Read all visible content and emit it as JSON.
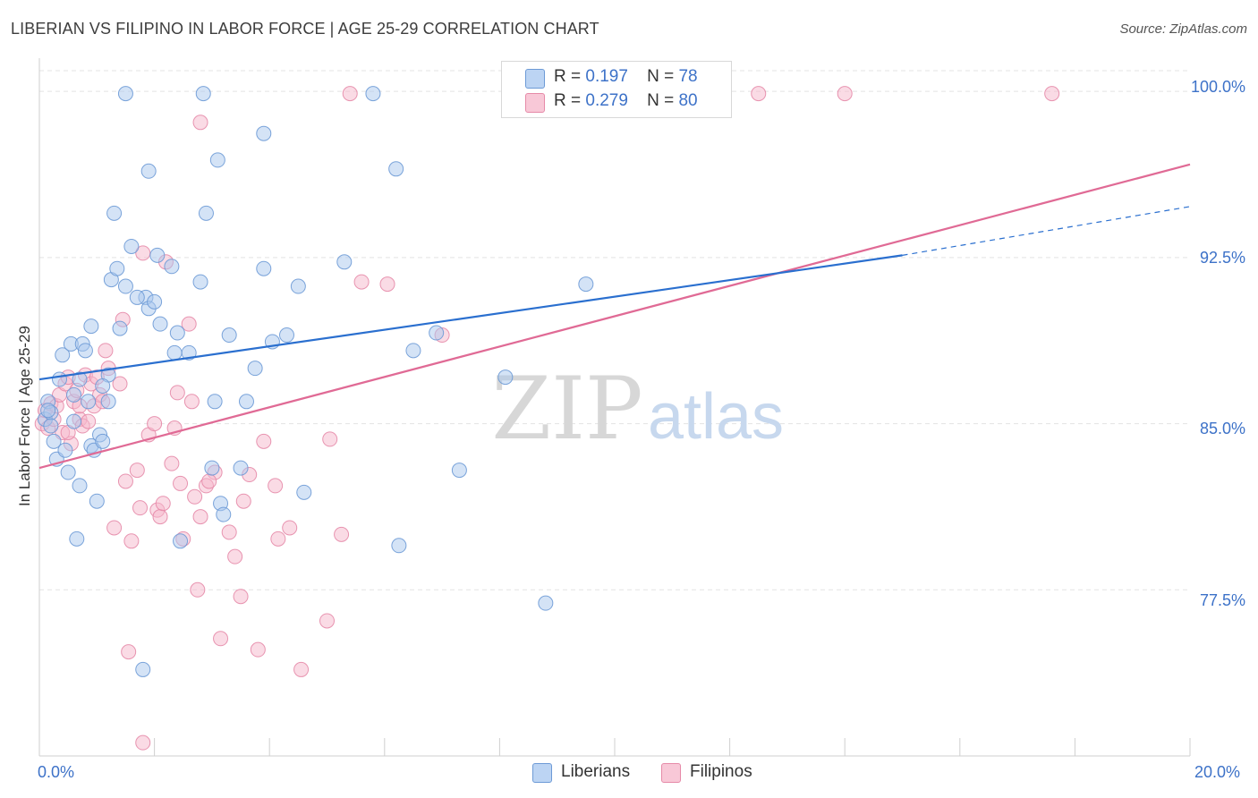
{
  "title": "LIBERIAN VS FILIPINO IN LABOR FORCE | AGE 25-29 CORRELATION CHART",
  "source": "Source: ZipAtlas.com",
  "watermark": {
    "zip": "ZIP",
    "atlas": "atlas"
  },
  "legend": {
    "liberian": {
      "r_label": "R =",
      "r_value": "0.197",
      "n_label": "N =",
      "n_value": "78"
    },
    "filipino": {
      "r_label": "R =",
      "r_value": "0.279",
      "n_label": "N =",
      "n_value": "80"
    }
  },
  "bottom_legend": {
    "liberian": "Liberians",
    "filipino": "Filipinos"
  },
  "colors": {
    "liberian_fill": "#a9c8ee",
    "liberian_stroke": "#6d9ad6",
    "liberian_line": "#2a6fcf",
    "filipino_fill": "#f5b8cb",
    "filipino_stroke": "#e68aa8",
    "filipino_line": "#e06a95",
    "tick_text": "#3d72c8",
    "grid": "#e3e3e3"
  },
  "chart_data": {
    "type": "scatter",
    "title": "LIBERIAN VS FILIPINO IN LABOR FORCE | AGE 25-29 CORRELATION CHART",
    "xlabel": "",
    "ylabel": "In Labor Force | Age 25-29",
    "xlim": [
      0,
      20
    ],
    "ylim": [
      70.0,
      101.5
    ],
    "x_tick_labels": [
      "0.0%",
      "20.0%"
    ],
    "y_ticks": [
      100.0,
      92.5,
      85.0,
      77.5
    ],
    "y_tick_labels": [
      "100.0%",
      "92.5%",
      "85.0%",
      "77.5%"
    ],
    "grid": true,
    "series": [
      {
        "name": "Liberians",
        "trend": {
          "x0": 0.0,
          "y0": 87.0,
          "x1": 15.0,
          "y1": 92.6,
          "dash_to_x": 20.0,
          "dash_to_y": 94.8
        },
        "points": [
          [
            0.1,
            85.2
          ],
          [
            0.15,
            86.0
          ],
          [
            0.2,
            85.5
          ],
          [
            0.25,
            84.2
          ],
          [
            0.3,
            83.4
          ],
          [
            0.35,
            87.0
          ],
          [
            0.4,
            88.1
          ],
          [
            0.45,
            83.8
          ],
          [
            0.5,
            82.8
          ],
          [
            0.55,
            88.6
          ],
          [
            0.6,
            85.1
          ],
          [
            0.65,
            79.8
          ],
          [
            0.7,
            87.0
          ],
          [
            0.75,
            88.6
          ],
          [
            0.8,
            88.3
          ],
          [
            0.85,
            86.0
          ],
          [
            0.9,
            84.0
          ],
          [
            0.95,
            83.8
          ],
          [
            1.0,
            81.5
          ],
          [
            1.05,
            84.5
          ],
          [
            1.1,
            84.2
          ],
          [
            1.2,
            86.0
          ],
          [
            1.25,
            91.5
          ],
          [
            1.3,
            94.5
          ],
          [
            1.35,
            92.0
          ],
          [
            1.4,
            89.3
          ],
          [
            1.5,
            91.2
          ],
          [
            1.8,
            73.9
          ],
          [
            1.85,
            90.7
          ],
          [
            1.9,
            90.2
          ],
          [
            2.0,
            90.5
          ],
          [
            2.05,
            92.6
          ],
          [
            2.1,
            89.5
          ],
          [
            2.3,
            92.1
          ],
          [
            2.35,
            88.2
          ],
          [
            2.45,
            79.7
          ],
          [
            2.6,
            88.2
          ],
          [
            2.8,
            91.4
          ],
          [
            3.0,
            83.0
          ],
          [
            3.05,
            86.0
          ],
          [
            3.15,
            81.4
          ],
          [
            3.2,
            80.9
          ],
          [
            3.3,
            89.0
          ],
          [
            3.5,
            83.0
          ],
          [
            3.6,
            86.0
          ],
          [
            3.75,
            87.5
          ],
          [
            3.9,
            92.0
          ],
          [
            4.3,
            89.0
          ],
          [
            4.5,
            91.2
          ],
          [
            4.6,
            81.9
          ],
          [
            5.3,
            92.3
          ],
          [
            5.8,
            99.9
          ],
          [
            6.2,
            96.5
          ],
          [
            6.5,
            88.3
          ],
          [
            6.9,
            89.1
          ],
          [
            7.3,
            82.9
          ],
          [
            8.1,
            87.1
          ],
          [
            8.8,
            76.9
          ],
          [
            9.5,
            91.3
          ],
          [
            11.3,
            99.9
          ],
          [
            2.85,
            99.9
          ],
          [
            1.5,
            99.9
          ],
          [
            1.9,
            96.4
          ],
          [
            3.9,
            98.1
          ],
          [
            0.9,
            89.4
          ],
          [
            1.2,
            87.2
          ],
          [
            0.2,
            84.9
          ],
          [
            3.1,
            96.9
          ],
          [
            2.4,
            89.1
          ],
          [
            4.05,
            88.7
          ],
          [
            6.25,
            79.5
          ],
          [
            0.6,
            86.3
          ],
          [
            0.7,
            82.2
          ],
          [
            1.1,
            86.7
          ],
          [
            1.7,
            90.7
          ],
          [
            0.15,
            85.6
          ],
          [
            2.9,
            94.5
          ],
          [
            1.6,
            93.0
          ]
        ]
      },
      {
        "name": "Filipinos",
        "trend": {
          "x0": 0.0,
          "y0": 83.0,
          "x1": 20.0,
          "y1": 96.7
        },
        "points": [
          [
            0.05,
            85.0
          ],
          [
            0.1,
            85.6
          ],
          [
            0.15,
            84.8
          ],
          [
            0.2,
            85.9
          ],
          [
            0.25,
            85.2
          ],
          [
            0.3,
            85.8
          ],
          [
            0.35,
            86.3
          ],
          [
            0.4,
            84.6
          ],
          [
            0.45,
            86.8
          ],
          [
            0.5,
            87.1
          ],
          [
            0.55,
            84.1
          ],
          [
            0.6,
            86.0
          ],
          [
            0.65,
            86.5
          ],
          [
            0.7,
            85.2
          ],
          [
            0.75,
            84.9
          ],
          [
            0.8,
            87.2
          ],
          [
            0.85,
            85.1
          ],
          [
            0.9,
            86.8
          ],
          [
            0.95,
            85.8
          ],
          [
            1.0,
            87.1
          ],
          [
            1.05,
            86.3
          ],
          [
            1.1,
            86.0
          ],
          [
            1.15,
            88.3
          ],
          [
            1.2,
            87.5
          ],
          [
            1.3,
            80.3
          ],
          [
            1.4,
            86.8
          ],
          [
            1.5,
            82.4
          ],
          [
            1.6,
            79.7
          ],
          [
            1.7,
            82.9
          ],
          [
            1.75,
            81.2
          ],
          [
            1.8,
            92.7
          ],
          [
            1.9,
            84.5
          ],
          [
            2.0,
            85.0
          ],
          [
            2.05,
            81.1
          ],
          [
            2.1,
            80.8
          ],
          [
            2.15,
            81.4
          ],
          [
            2.2,
            92.3
          ],
          [
            2.3,
            83.2
          ],
          [
            2.4,
            86.4
          ],
          [
            2.45,
            82.3
          ],
          [
            2.5,
            79.8
          ],
          [
            2.6,
            89.5
          ],
          [
            2.65,
            86.0
          ],
          [
            2.7,
            81.7
          ],
          [
            2.75,
            77.5
          ],
          [
            2.8,
            80.8
          ],
          [
            2.9,
            82.2
          ],
          [
            3.05,
            82.8
          ],
          [
            3.15,
            75.3
          ],
          [
            3.3,
            80.1
          ],
          [
            3.4,
            79.0
          ],
          [
            3.5,
            77.2
          ],
          [
            3.55,
            81.5
          ],
          [
            3.65,
            82.7
          ],
          [
            3.8,
            74.8
          ],
          [
            4.15,
            79.8
          ],
          [
            4.35,
            80.3
          ],
          [
            4.55,
            73.9
          ],
          [
            5.0,
            76.1
          ],
          [
            5.25,
            80.0
          ],
          [
            5.4,
            99.9
          ],
          [
            5.6,
            91.4
          ],
          [
            6.05,
            91.3
          ],
          [
            7.0,
            89.0
          ],
          [
            8.6,
            99.9
          ],
          [
            9.85,
            99.9
          ],
          [
            12.5,
            99.9
          ],
          [
            14.0,
            99.9
          ],
          [
            17.6,
            99.9
          ],
          [
            2.8,
            98.6
          ],
          [
            1.55,
            74.7
          ],
          [
            1.8,
            70.6
          ],
          [
            2.95,
            82.4
          ],
          [
            4.1,
            82.2
          ],
          [
            5.05,
            84.3
          ],
          [
            3.9,
            84.2
          ],
          [
            2.35,
            84.8
          ],
          [
            1.45,
            89.7
          ],
          [
            0.5,
            84.6
          ],
          [
            0.7,
            85.8
          ]
        ]
      }
    ]
  }
}
